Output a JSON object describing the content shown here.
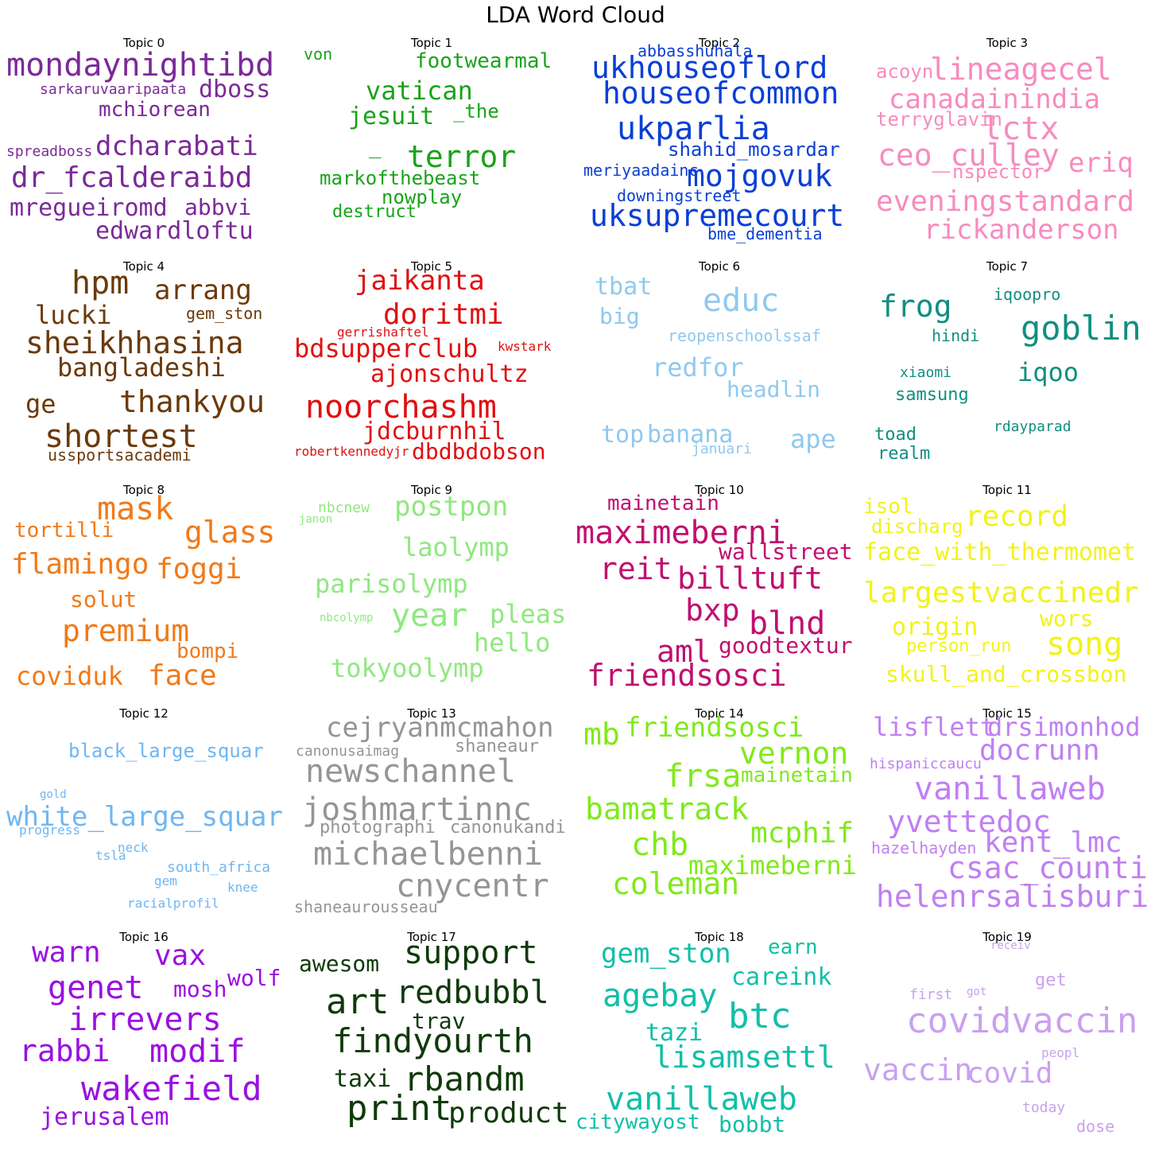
{
  "title": "LDA Word Cloud",
  "topics": [
    {
      "title": "Topic 0",
      "color": "#7b2a98",
      "words": [
        "mondaynightibd",
        "dboss",
        "sarkaruvaaripaata",
        "mchiorean",
        "dcharabati",
        "spreadboss",
        "dr_fcalderaibd",
        "mregueiromd",
        "abbvi",
        "edwardloftu"
      ]
    },
    {
      "title": "Topic 1",
      "color": "#1aa31a",
      "words": [
        "von",
        "footwearmal",
        "vatican",
        "jesuit",
        "_the",
        "terror",
        "_",
        "markofthebeast",
        "nowplay",
        "destruct"
      ]
    },
    {
      "title": "Topic 2",
      "color": "#0a3fd6",
      "words": [
        "abbasshuhala",
        "ukhouseoflord",
        "houseofcommon",
        "ukparlia",
        "shahid_mosardar",
        "meriyaadainc",
        "mojgovuk",
        "downingstreet",
        "uksupremecourt",
        "bme_dementia"
      ]
    },
    {
      "title": "Topic 3",
      "color": "#f78bbf",
      "words": [
        "acoyn",
        "lineagecel",
        "canadainindia",
        "terryglavin",
        "lctx",
        "ceo_culley",
        "eriq",
        "nspector",
        "eveningstandard",
        "rickanderson"
      ]
    },
    {
      "title": "Topic 4",
      "color": "#6b3a0a",
      "words": [
        "hpm",
        "arrang",
        "lucki",
        "gem_ston",
        "sheikhhasina",
        "bangladeshi",
        "ge",
        "thankyou",
        "shortest",
        "ussportsacademi"
      ]
    },
    {
      "title": "Topic 5",
      "color": "#e01010",
      "words": [
        "jaikanta",
        "doritmi",
        "gerrishaftel",
        "bdsupperclub",
        "kwstark",
        "ajonschultz",
        "noorchashm",
        "jdcburnhil",
        "robertkennedyjr",
        "dbdbdobson"
      ]
    },
    {
      "title": "Topic 6",
      "color": "#8fc9ef",
      "words": [
        "tbat",
        "educ",
        "big",
        "reopenschoolssaf",
        "redfor",
        "headlin",
        "top",
        "banana",
        "ape",
        "januari"
      ]
    },
    {
      "title": "Topic 7",
      "color": "#0f8f7f",
      "words": [
        "frog",
        "iqoopro",
        "goblin",
        "hindi",
        "iqoo",
        "xiaomi",
        "samsung",
        "toad",
        "rdayparad",
        "realm"
      ]
    },
    {
      "title": "Topic 8",
      "color": "#f07a1a",
      "words": [
        "mask",
        "glass",
        "tortilli",
        "flamingo",
        "foggi",
        "solut",
        "premium",
        "bompi",
        "coviduk",
        "face"
      ]
    },
    {
      "title": "Topic 9",
      "color": "#8fe87f",
      "words": [
        "nbcnew",
        "janon",
        "postpon",
        "laolymp",
        "parisolymp",
        "year",
        "pleas",
        "nbcolymp",
        "hello",
        "tokyoolymp"
      ]
    },
    {
      "title": "Topic 10",
      "color": "#c0106f",
      "words": [
        "mainetain",
        "maximeberni",
        "wallstreet",
        "reit",
        "billtuft",
        "bxp",
        "blnd",
        "aml",
        "goodtextur",
        "friendsosci"
      ]
    },
    {
      "title": "Topic 11",
      "color": "#f2f21a",
      "words": [
        "isol",
        "record",
        "discharg",
        "face_with_thermomet",
        "largestvaccinedr",
        "origin",
        "wors",
        "person_run",
        "song",
        "skull_and_crossbon"
      ]
    },
    {
      "title": "Topic 12",
      "color": "#6fb6f2",
      "words": [
        "black_large_squar",
        "gold",
        "white_large_squar",
        "progress",
        "neck",
        "tsla",
        "south_africa",
        "gem",
        "knee",
        "racialprofil"
      ]
    },
    {
      "title": "Topic 13",
      "color": "#959595",
      "words": [
        "cejryanmcmahon",
        "canonusaimag",
        "shaneaur",
        "newschannel",
        "joshmartinnc",
        "photographi",
        "canonukandi",
        "michaelbenni",
        "cnycentr",
        "shaneaurousseau"
      ]
    },
    {
      "title": "Topic 14",
      "color": "#7fea1a",
      "words": [
        "mb",
        "friendsosci",
        "vernon",
        "frsa",
        "mainetain",
        "bamatrack",
        "mcphif",
        "chb",
        "maximeberni",
        "coleman"
      ]
    },
    {
      "title": "Topic 15",
      "color": "#c07ff2",
      "words": [
        "lisflett",
        "drsimonhod",
        "docrunn",
        "hispaniccaucu",
        "vanillaweb",
        "yvettedoc",
        "kent_lmc",
        "hazelhayden",
        "csac_counti",
        "helenrsalisburi"
      ]
    },
    {
      "title": "Topic 16",
      "color": "#9a10e0",
      "words": [
        "warn",
        "vax",
        "genet",
        "mosh",
        "wolf",
        "irrevers",
        "rabbi",
        "modif",
        "wakefield",
        "jerusalem"
      ]
    },
    {
      "title": "Topic 17",
      "color": "#0f3a0a",
      "words": [
        "awesom",
        "support",
        "art",
        "redbubbl",
        "trav",
        "findyourth",
        "taxi",
        "rbandm",
        "print",
        "product"
      ]
    },
    {
      "title": "Topic 18",
      "color": "#10bfa8",
      "words": [
        "gem_ston",
        "earn",
        "careink",
        "agebay",
        "btc",
        "tazi",
        "lisamsettl",
        "vanillaweb",
        "citywayost",
        "bobbt"
      ]
    },
    {
      "title": "Topic 19",
      "color": "#c9a0f0",
      "words": [
        "receiv",
        "get",
        "first",
        "got",
        "covidvaccin",
        "peopl",
        "vaccin",
        "covid",
        "today",
        "dose"
      ]
    }
  ]
}
